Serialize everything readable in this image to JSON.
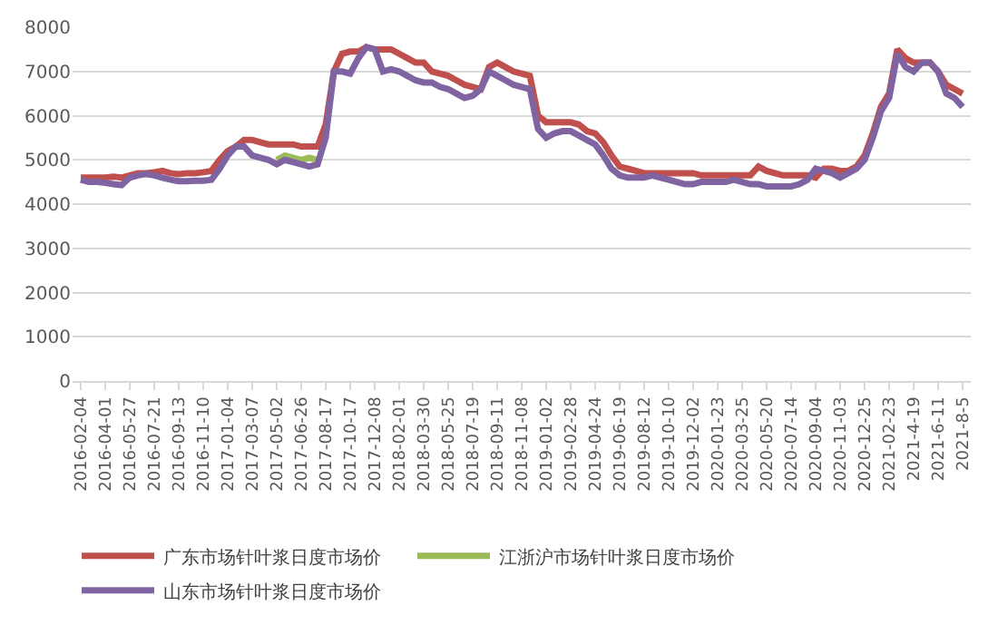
{
  "chart_data": {
    "type": "line",
    "categories": [
      "2016-02-04",
      null,
      null,
      "2016-04-01",
      null,
      null,
      "2016-05-27",
      null,
      null,
      "2016-07-21",
      null,
      null,
      "2016-09-13",
      null,
      null,
      "2016-11-10",
      null,
      null,
      "2017-01-04",
      null,
      null,
      "2017-03-07",
      null,
      null,
      "2017-05-02",
      null,
      null,
      "2017-06-26",
      null,
      null,
      "2017-08-17",
      null,
      null,
      "2017-10-17",
      null,
      null,
      "2017-12-08",
      null,
      null,
      "2018-02-01",
      null,
      null,
      "2018-03-30",
      null,
      null,
      "2018-05-25",
      null,
      null,
      "2018-07-19",
      null,
      null,
      "2018-09-11",
      null,
      null,
      "2018-11-08",
      null,
      null,
      "2019-01-02",
      null,
      null,
      "2019-02-28",
      null,
      null,
      "2019-04-24",
      null,
      null,
      "2019-06-19",
      null,
      null,
      "2019-08-12",
      null,
      null,
      "2019-10-10",
      null,
      null,
      "2019-12-02",
      null,
      null,
      "2020-01-23",
      null,
      null,
      "2020-03-25",
      null,
      null,
      "2020-05-20",
      null,
      null,
      "2020-07-14",
      null,
      null,
      "2020-09-04",
      null,
      null,
      "2020-11-03",
      null,
      null,
      "2020-12-25",
      null,
      null,
      "2021-02-23",
      null,
      null,
      "2021-4-19",
      null,
      null,
      "2021-6-11",
      null,
      null,
      "2021-8-5"
    ],
    "series": [
      {
        "name": "广东市场针叶浆日度市场价",
        "color": "#c0504d",
        "values": [
          4600,
          4600,
          4600,
          4600,
          4620,
          4600,
          4650,
          4700,
          4700,
          4720,
          4750,
          4700,
          4680,
          4700,
          4700,
          4720,
          4750,
          5000,
          5200,
          5300,
          5450,
          5450,
          5400,
          5350,
          5350,
          5350,
          5350,
          5300,
          5300,
          5300,
          5800,
          7000,
          7400,
          7450,
          7450,
          7550,
          7500,
          7500,
          7500,
          7400,
          7300,
          7200,
          7200,
          7000,
          6950,
          6900,
          6800,
          6700,
          6650,
          6600,
          7100,
          7200,
          7100,
          7000,
          6950,
          6900,
          6000,
          5850,
          5850,
          5850,
          5850,
          5800,
          5650,
          5600,
          5400,
          5100,
          4850,
          4800,
          4750,
          4700,
          4700,
          4700,
          4700,
          4700,
          4700,
          4700,
          4650,
          4650,
          4650,
          4650,
          4650,
          4650,
          4650,
          4850,
          4750,
          4700,
          4650,
          4650,
          4650,
          4650,
          4600,
          4800,
          4800,
          4750,
          4750,
          4850,
          5100,
          5600,
          6200,
          6500,
          7500,
          7300,
          7200,
          7200,
          7200,
          7000,
          6700,
          6600,
          6500
        ]
      },
      {
        "name": "江浙沪市场针叶浆日度市场价",
        "color": "#9bbb59",
        "values": [
          null,
          null,
          null,
          null,
          null,
          null,
          null,
          null,
          null,
          null,
          null,
          null,
          null,
          null,
          null,
          null,
          null,
          null,
          null,
          null,
          null,
          null,
          null,
          null,
          5000,
          5100,
          5050,
          5000,
          5050,
          5000,
          null,
          null,
          null,
          null,
          null,
          null,
          null,
          null,
          null,
          null,
          null,
          null,
          null,
          null,
          null,
          null,
          null,
          null,
          null,
          null,
          null,
          null,
          null,
          null,
          null,
          null,
          null,
          null,
          null,
          null,
          null,
          null,
          null,
          null,
          null,
          null,
          null,
          null,
          null,
          null,
          null,
          null,
          null,
          null,
          null,
          null,
          null,
          null,
          null,
          null,
          null,
          null,
          null,
          null,
          null,
          null,
          null,
          null,
          null,
          null,
          null,
          null,
          null,
          null,
          null,
          null,
          null,
          null,
          null,
          null,
          null,
          null,
          null,
          null,
          null,
          null,
          null,
          null,
          null
        ]
      },
      {
        "name": "山东市场针叶浆日度市场价",
        "color": "#8064a2",
        "values": [
          4550,
          4500,
          4500,
          4480,
          4450,
          4430,
          4600,
          4650,
          4680,
          4650,
          4600,
          4550,
          4520,
          4520,
          4530,
          4530,
          4550,
          4800,
          5100,
          5300,
          5300,
          5100,
          5050,
          5000,
          4900,
          5000,
          4950,
          4900,
          4850,
          4900,
          5500,
          7000,
          7000,
          6950,
          7300,
          7550,
          7500,
          7000,
          7050,
          7000,
          6900,
          6800,
          6750,
          6750,
          6650,
          6600,
          6500,
          6400,
          6450,
          6600,
          7000,
          6900,
          6800,
          6700,
          6650,
          6600,
          5700,
          5500,
          5600,
          5650,
          5650,
          5550,
          5450,
          5350,
          5100,
          4800,
          4650,
          4600,
          4600,
          4600,
          4650,
          4600,
          4550,
          4500,
          4450,
          4450,
          4500,
          4500,
          4500,
          4500,
          4550,
          4500,
          4450,
          4450,
          4400,
          4400,
          4400,
          4400,
          4450,
          4550,
          4800,
          4750,
          4700,
          4600,
          4700,
          4800,
          5000,
          5500,
          6100,
          6400,
          7400,
          7100,
          7000,
          7200,
          7200,
          7000,
          6500,
          6400,
          6200
        ]
      }
    ],
    "ylim": [
      0,
      8000
    ],
    "yticks": [
      0,
      1000,
      2000,
      3000,
      4000,
      5000,
      6000,
      7000,
      8000
    ],
    "grid": "y",
    "legend": "bottom",
    "marker": "none",
    "line_style": "solid"
  }
}
